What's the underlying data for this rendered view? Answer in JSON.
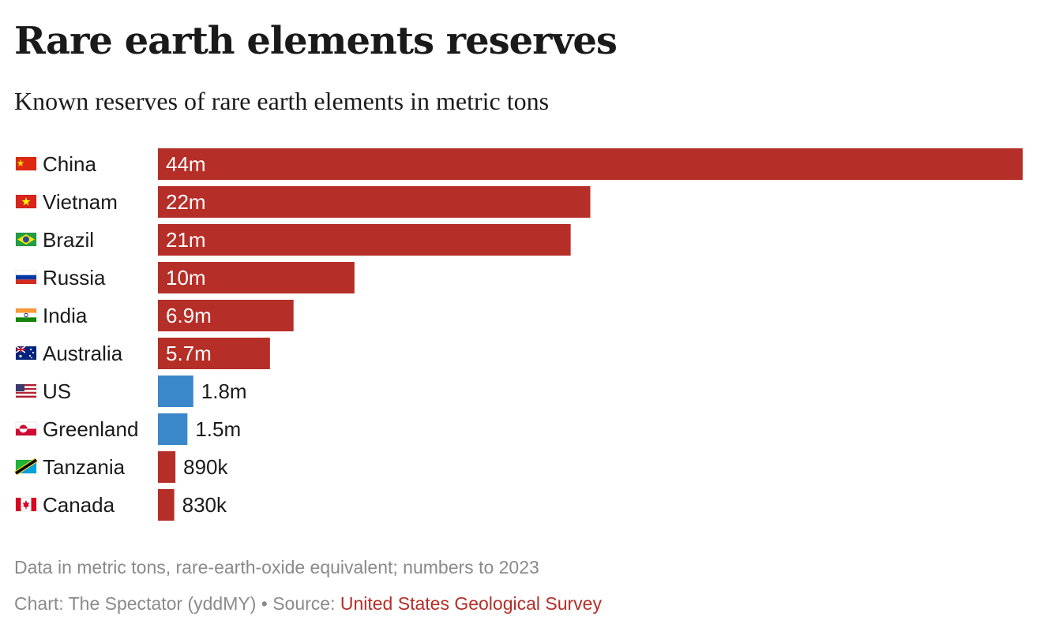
{
  "header": {
    "title": "Rare earth elements reserves",
    "subtitle": "Known reserves of rare earth elements in metric tons"
  },
  "colors": {
    "default_bar": "#b52e27",
    "highlight_bar": "#3a87c9",
    "label_text": "#1a1a1a",
    "footer_text": "#8a8a8a"
  },
  "chart_data": {
    "type": "bar",
    "orientation": "horizontal",
    "title": "Rare earth elements reserves",
    "subtitle": "Known reserves of rare earth elements in metric tons",
    "unit": "metric tons",
    "categories": [
      "China",
      "Vietnam",
      "Brazil",
      "Russia",
      "India",
      "Australia",
      "US",
      "Greenland",
      "Tanzania",
      "Canada"
    ],
    "values": [
      44000000,
      22000000,
      21000000,
      10000000,
      6900000,
      5700000,
      1800000,
      1500000,
      890000,
      830000
    ],
    "value_labels": [
      "44m",
      "22m",
      "21m",
      "10m",
      "6.9m",
      "5.7m",
      "1.8m",
      "1.5m",
      "890k",
      "830k"
    ],
    "flags": [
      "flag-china-icon",
      "flag-vietnam-icon",
      "flag-brazil-icon",
      "flag-russia-icon",
      "flag-india-icon",
      "flag-australia-icon",
      "flag-us-icon",
      "flag-greenland-icon",
      "flag-tanzania-icon",
      "flag-canada-icon"
    ],
    "highlighted": [
      "US",
      "Greenland"
    ],
    "xlim": [
      0,
      44000000
    ],
    "grid": false,
    "legend": "none"
  },
  "footer": {
    "note": "Data in metric tons, rare-earth-oxide equivalent; numbers to 2023",
    "credit_prefix": "Chart: The Spectator (yddMY) • Source: ",
    "source_name": "United States Geological Survey"
  }
}
